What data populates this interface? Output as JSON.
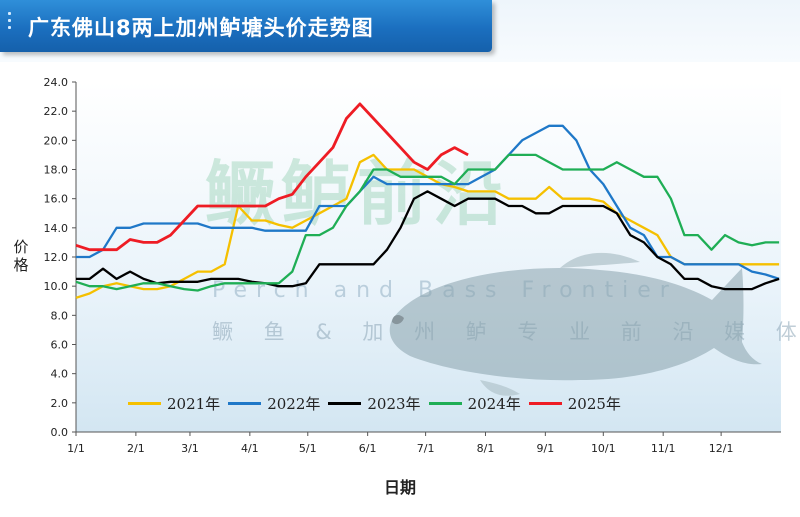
{
  "header": {
    "title": "广东佛山8两上加州鲈塘头价走势图"
  },
  "watermark": {
    "brand": "鳜鲈前沿",
    "english": "Perch and Bass Frontier",
    "tagline": "鳜 鱼 & 加 州 鲈 专 业 前 沿 媒 体"
  },
  "colors": {
    "title_bar": "#1b6fbf",
    "s2021": "#f5c000",
    "s2022": "#1f78c8",
    "s2023": "#000000",
    "s2024": "#1fae55",
    "s2025": "#ee1c24"
  },
  "chart_data": {
    "type": "line",
    "title": "广东佛山8两上加州鲈塘头价走势图",
    "xlabel": "日期",
    "ylabel": "价格",
    "ylim": [
      0,
      24
    ],
    "y_ticks": [
      "0.0",
      "2.0",
      "4.0",
      "6.0",
      "8.0",
      "10.0",
      "12.0",
      "14.0",
      "16.0",
      "18.0",
      "20.0",
      "22.0",
      "24.0"
    ],
    "x_ticks": [
      "1/1",
      "2/1",
      "3/1",
      "4/1",
      "5/1",
      "6/1",
      "7/1",
      "8/1",
      "9/1",
      "10/1",
      "11/1",
      "12/1"
    ],
    "grid": false,
    "legend_position": "bottom",
    "series": [
      {
        "name": "2021年",
        "color": "#f5c000",
        "points": [
          [
            "1/1",
            9.2
          ],
          [
            "1/8",
            9.5
          ],
          [
            "1/15",
            10.0
          ],
          [
            "1/22",
            10.2
          ],
          [
            "1/29",
            10.0
          ],
          [
            "2/5",
            9.8
          ],
          [
            "2/12",
            9.8
          ],
          [
            "2/19",
            10.0
          ],
          [
            "2/26",
            10.5
          ],
          [
            "3/5",
            11.0
          ],
          [
            "3/12",
            11.0
          ],
          [
            "3/19",
            11.5
          ],
          [
            "3/26",
            15.5
          ],
          [
            "4/2",
            14.5
          ],
          [
            "4/9",
            14.5
          ],
          [
            "4/16",
            14.2
          ],
          [
            "4/23",
            14.0
          ],
          [
            "4/30",
            14.5
          ],
          [
            "5/7",
            15.0
          ],
          [
            "5/14",
            15.5
          ],
          [
            "5/21",
            16.0
          ],
          [
            "5/28",
            18.5
          ],
          [
            "6/4",
            19.0
          ],
          [
            "6/11",
            18.0
          ],
          [
            "6/18",
            18.0
          ],
          [
            "6/25",
            18.0
          ],
          [
            "7/2",
            17.5
          ],
          [
            "7/9",
            17.0
          ],
          [
            "7/16",
            16.8
          ],
          [
            "7/23",
            16.5
          ],
          [
            "7/30",
            16.5
          ],
          [
            "8/6",
            16.5
          ],
          [
            "8/13",
            16.0
          ],
          [
            "8/20",
            16.0
          ],
          [
            "8/27",
            16.0
          ],
          [
            "9/3",
            16.8
          ],
          [
            "9/10",
            16.0
          ],
          [
            "9/17",
            16.0
          ],
          [
            "9/24",
            16.0
          ],
          [
            "10/1",
            15.8
          ],
          [
            "10/8",
            15.0
          ],
          [
            "10/15",
            14.5
          ],
          [
            "10/22",
            14.0
          ],
          [
            "10/29",
            13.5
          ],
          [
            "11/5",
            12.0
          ],
          [
            "11/12",
            11.5
          ],
          [
            "11/19",
            11.5
          ],
          [
            "11/26",
            11.5
          ],
          [
            "12/3",
            11.5
          ],
          [
            "12/10",
            11.5
          ],
          [
            "12/17",
            11.5
          ],
          [
            "12/24",
            11.5
          ],
          [
            "12/31",
            11.5
          ]
        ]
      },
      {
        "name": "2022年",
        "color": "#1f78c8",
        "points": [
          [
            "1/1",
            12.0
          ],
          [
            "1/8",
            12.0
          ],
          [
            "1/15",
            12.5
          ],
          [
            "1/22",
            14.0
          ],
          [
            "1/29",
            14.0
          ],
          [
            "2/5",
            14.3
          ],
          [
            "2/12",
            14.3
          ],
          [
            "2/19",
            14.3
          ],
          [
            "2/26",
            14.3
          ],
          [
            "3/5",
            14.3
          ],
          [
            "3/12",
            14.0
          ],
          [
            "3/19",
            14.0
          ],
          [
            "3/26",
            14.0
          ],
          [
            "4/2",
            14.0
          ],
          [
            "4/9",
            13.8
          ],
          [
            "4/16",
            13.8
          ],
          [
            "4/23",
            13.8
          ],
          [
            "4/30",
            13.8
          ],
          [
            "5/7",
            15.5
          ],
          [
            "5/14",
            15.5
          ],
          [
            "5/21",
            15.5
          ],
          [
            "5/28",
            16.5
          ],
          [
            "6/4",
            17.5
          ],
          [
            "6/11",
            17.0
          ],
          [
            "6/18",
            17.0
          ],
          [
            "6/25",
            17.0
          ],
          [
            "7/2",
            17.0
          ],
          [
            "7/9",
            17.0
          ],
          [
            "7/16",
            17.0
          ],
          [
            "7/23",
            17.0
          ],
          [
            "7/30",
            17.5
          ],
          [
            "8/6",
            18.0
          ],
          [
            "8/13",
            19.0
          ],
          [
            "8/20",
            20.0
          ],
          [
            "8/27",
            20.5
          ],
          [
            "9/3",
            21.0
          ],
          [
            "9/10",
            21.0
          ],
          [
            "9/17",
            20.0
          ],
          [
            "9/24",
            18.0
          ],
          [
            "10/1",
            17.0
          ],
          [
            "10/8",
            15.5
          ],
          [
            "10/15",
            14.0
          ],
          [
            "10/22",
            13.5
          ],
          [
            "10/29",
            12.0
          ],
          [
            "11/5",
            12.0
          ],
          [
            "11/12",
            11.5
          ],
          [
            "11/19",
            11.5
          ],
          [
            "11/26",
            11.5
          ],
          [
            "12/3",
            11.5
          ],
          [
            "12/10",
            11.5
          ],
          [
            "12/17",
            11.0
          ],
          [
            "12/24",
            10.8
          ],
          [
            "12/31",
            10.5
          ]
        ]
      },
      {
        "name": "2023年",
        "color": "#000000",
        "points": [
          [
            "1/1",
            10.5
          ],
          [
            "1/8",
            10.5
          ],
          [
            "1/15",
            11.2
          ],
          [
            "1/22",
            10.5
          ],
          [
            "1/29",
            11.0
          ],
          [
            "2/5",
            10.5
          ],
          [
            "2/12",
            10.2
          ],
          [
            "2/19",
            10.3
          ],
          [
            "2/26",
            10.3
          ],
          [
            "3/5",
            10.3
          ],
          [
            "3/12",
            10.5
          ],
          [
            "3/19",
            10.5
          ],
          [
            "3/26",
            10.5
          ],
          [
            "4/2",
            10.3
          ],
          [
            "4/9",
            10.2
          ],
          [
            "4/16",
            10.0
          ],
          [
            "4/23",
            10.0
          ],
          [
            "4/30",
            10.2
          ],
          [
            "5/7",
            11.5
          ],
          [
            "5/14",
            11.5
          ],
          [
            "5/21",
            11.5
          ],
          [
            "5/28",
            11.5
          ],
          [
            "6/4",
            11.5
          ],
          [
            "6/11",
            12.5
          ],
          [
            "6/18",
            14.0
          ],
          [
            "6/25",
            16.0
          ],
          [
            "7/2",
            16.5
          ],
          [
            "7/9",
            16.0
          ],
          [
            "7/16",
            15.5
          ],
          [
            "7/23",
            16.0
          ],
          [
            "7/30",
            16.0
          ],
          [
            "8/6",
            16.0
          ],
          [
            "8/13",
            15.5
          ],
          [
            "8/20",
            15.5
          ],
          [
            "8/27",
            15.0
          ],
          [
            "9/3",
            15.0
          ],
          [
            "9/10",
            15.5
          ],
          [
            "9/17",
            15.5
          ],
          [
            "9/24",
            15.5
          ],
          [
            "10/1",
            15.5
          ],
          [
            "10/8",
            15.0
          ],
          [
            "10/15",
            13.5
          ],
          [
            "10/22",
            13.0
          ],
          [
            "10/29",
            12.0
          ],
          [
            "11/5",
            11.5
          ],
          [
            "11/12",
            10.5
          ],
          [
            "11/19",
            10.5
          ],
          [
            "11/26",
            10.0
          ],
          [
            "12/3",
            9.8
          ],
          [
            "12/10",
            9.8
          ],
          [
            "12/17",
            9.8
          ],
          [
            "12/24",
            10.2
          ],
          [
            "12/31",
            10.5
          ]
        ]
      },
      {
        "name": "2024年",
        "color": "#1fae55",
        "points": [
          [
            "1/1",
            10.3
          ],
          [
            "1/8",
            10.0
          ],
          [
            "1/15",
            10.0
          ],
          [
            "1/22",
            9.8
          ],
          [
            "1/29",
            10.0
          ],
          [
            "2/5",
            10.2
          ],
          [
            "2/12",
            10.2
          ],
          [
            "2/19",
            10.0
          ],
          [
            "2/26",
            9.8
          ],
          [
            "3/5",
            9.7
          ],
          [
            "3/12",
            10.0
          ],
          [
            "3/19",
            10.2
          ],
          [
            "3/26",
            10.2
          ],
          [
            "4/2",
            10.2
          ],
          [
            "4/9",
            10.2
          ],
          [
            "4/16",
            10.2
          ],
          [
            "4/23",
            11.0
          ],
          [
            "4/30",
            13.5
          ],
          [
            "5/7",
            13.5
          ],
          [
            "5/14",
            14.0
          ],
          [
            "5/21",
            15.5
          ],
          [
            "5/28",
            16.5
          ],
          [
            "6/4",
            18.0
          ],
          [
            "6/11",
            18.0
          ],
          [
            "6/18",
            17.5
          ],
          [
            "6/25",
            17.5
          ],
          [
            "7/2",
            17.5
          ],
          [
            "7/9",
            17.5
          ],
          [
            "7/16",
            17.0
          ],
          [
            "7/23",
            18.0
          ],
          [
            "7/30",
            18.0
          ],
          [
            "8/6",
            18.0
          ],
          [
            "8/13",
            19.0
          ],
          [
            "8/20",
            19.0
          ],
          [
            "8/27",
            19.0
          ],
          [
            "9/3",
            18.5
          ],
          [
            "9/10",
            18.0
          ],
          [
            "9/17",
            18.0
          ],
          [
            "9/24",
            18.0
          ],
          [
            "10/1",
            18.0
          ],
          [
            "10/8",
            18.5
          ],
          [
            "10/15",
            18.0
          ],
          [
            "10/22",
            17.5
          ],
          [
            "10/29",
            17.5
          ],
          [
            "11/5",
            16.0
          ],
          [
            "11/12",
            13.5
          ],
          [
            "11/19",
            13.5
          ],
          [
            "11/26",
            12.5
          ],
          [
            "12/3",
            13.5
          ],
          [
            "12/10",
            13.0
          ],
          [
            "12/17",
            12.8
          ],
          [
            "12/24",
            13.0
          ],
          [
            "12/31",
            13.0
          ]
        ]
      },
      {
        "name": "2025年",
        "color": "#ee1c24",
        "points": [
          [
            "1/1",
            12.8
          ],
          [
            "1/8",
            12.5
          ],
          [
            "1/15",
            12.5
          ],
          [
            "1/22",
            12.5
          ],
          [
            "1/29",
            13.2
          ],
          [
            "2/5",
            13.0
          ],
          [
            "2/12",
            13.0
          ],
          [
            "2/19",
            13.5
          ],
          [
            "2/26",
            14.5
          ],
          [
            "3/5",
            15.5
          ],
          [
            "3/12",
            15.5
          ],
          [
            "3/19",
            15.5
          ],
          [
            "3/26",
            15.5
          ],
          [
            "4/2",
            15.5
          ],
          [
            "4/9",
            15.5
          ],
          [
            "4/16",
            16.0
          ],
          [
            "4/23",
            16.3
          ],
          [
            "4/30",
            17.5
          ],
          [
            "5/7",
            18.5
          ],
          [
            "5/14",
            19.5
          ],
          [
            "5/21",
            21.5
          ],
          [
            "5/28",
            22.5
          ],
          [
            "6/4",
            21.5
          ],
          [
            "6/11",
            20.5
          ],
          [
            "6/18",
            19.5
          ],
          [
            "6/25",
            18.5
          ],
          [
            "7/2",
            18.0
          ],
          [
            "7/9",
            19.0
          ],
          [
            "7/16",
            19.5
          ],
          [
            "7/23",
            19.0
          ]
        ]
      }
    ]
  }
}
